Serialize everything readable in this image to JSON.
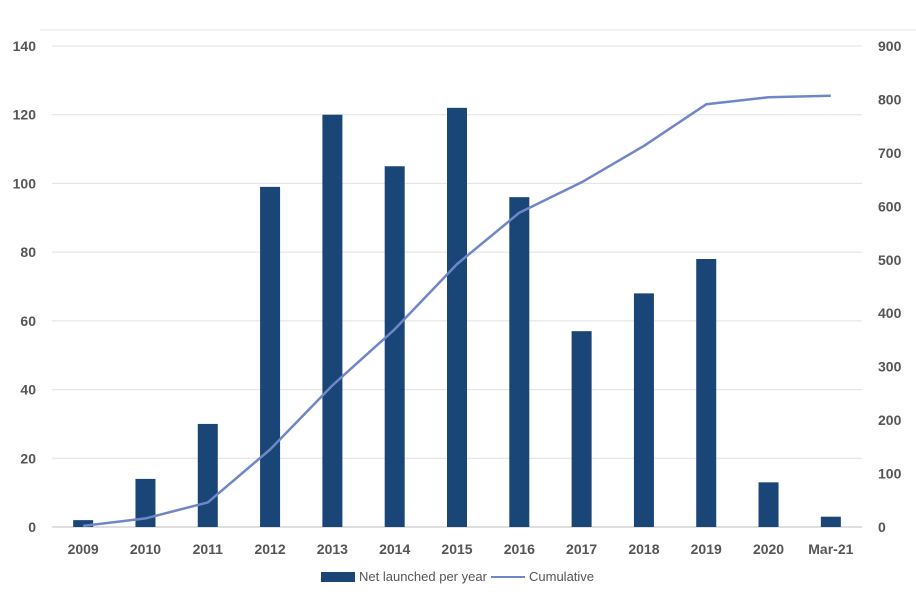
{
  "chart_data": {
    "type": "bar",
    "categories": [
      "2009",
      "2010",
      "2011",
      "2012",
      "2013",
      "2014",
      "2015",
      "2016",
      "2017",
      "2018",
      "2019",
      "2020",
      "Mar-21"
    ],
    "series": [
      {
        "name": "Net launched per year",
        "type": "bar",
        "axis": "left",
        "color": "#1A4577",
        "values": [
          2,
          14,
          30,
          99,
          120,
          105,
          122,
          96,
          57,
          68,
          78,
          13,
          3
        ]
      },
      {
        "name": "Cumulative",
        "type": "line",
        "axis": "right",
        "color": "#6F86C8",
        "values": [
          2,
          16,
          46,
          145,
          265,
          370,
          492,
          588,
          645,
          713,
          791,
          804,
          807
        ]
      }
    ],
    "y_left": {
      "min": 0,
      "max": 140,
      "ticks": [
        "0",
        "20",
        "40",
        "60",
        "80",
        "100",
        "120",
        "140"
      ]
    },
    "y_right": {
      "min": 0,
      "max": 900,
      "ticks": [
        "0",
        "100",
        "200",
        "300",
        "400",
        "500",
        "600",
        "700",
        "800",
        "900"
      ]
    },
    "title": "",
    "xlabel": "",
    "ylabel": "",
    "grid": true,
    "legend_position": "bottom"
  }
}
